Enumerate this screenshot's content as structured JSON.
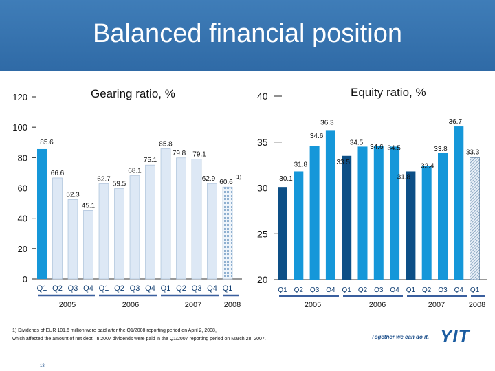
{
  "slide": {
    "title": "Balanced financial position",
    "footnote_line1": "1) Dividends of EUR 101.6 million were paid after the Q1/2008 reporting period on April 2, 2008,",
    "footnote_line2": "which affected the amount of net debt. In 2007 dividends were paid in the Q1/2007 reporting period on March 28, 2007.",
    "tagline": "Together we can do it.",
    "logo": "YIT",
    "page_number": "13"
  },
  "colors": {
    "header_blue": "#2f6aa6",
    "gearing_bar": "#dde8f5",
    "gearing_last": "#b9d0ea",
    "equity_dark": "#0d4f86",
    "equity_bright": "#1597d9",
    "hatch": "#6d8fb0",
    "year_line": "#3a5f9e"
  },
  "chart_data": [
    {
      "type": "bar",
      "title": "Gearing ratio, %",
      "categories": [
        "Q1",
        "Q2",
        "Q3",
        "Q4",
        "Q1",
        "Q2",
        "Q3",
        "Q4",
        "Q1",
        "Q2",
        "Q3",
        "Q4",
        "Q1"
      ],
      "years": [
        "2005",
        "2006",
        "2007",
        "2008"
      ],
      "values": [
        85.6,
        66.6,
        52.3,
        45.1,
        62.7,
        59.5,
        68.1,
        75.1,
        85.8,
        79.8,
        79.1,
        62.9,
        60.6
      ],
      "value_labels": [
        "85.6",
        "66.6",
        "52.3",
        "45.1",
        "62.7",
        "59.5",
        "68.1",
        "75.1",
        "85.8",
        "79.8",
        "79.1",
        "62.9",
        "60.6"
      ],
      "annotation": "1)",
      "yticks": [
        "0",
        "20",
        "40",
        "60",
        "80",
        "100",
        "120"
      ],
      "ylim": [
        0,
        120
      ]
    },
    {
      "type": "bar",
      "title": "Equity ratio, %",
      "categories": [
        "Q1",
        "Q2",
        "Q3",
        "Q4",
        "Q1",
        "Q2",
        "Q3",
        "Q4",
        "Q1",
        "Q2",
        "Q3",
        "Q4",
        "Q1"
      ],
      "years": [
        "2005",
        "2006",
        "2007",
        "2008"
      ],
      "values": [
        30.1,
        31.8,
        34.6,
        36.3,
        33.5,
        34.5,
        34.6,
        34.5,
        31.8,
        32.4,
        33.8,
        36.7,
        33.3
      ],
      "value_labels": [
        "30.1",
        "31.8",
        "34.6",
        "36.3",
        "33.5",
        "34.5",
        "34.6",
        "34.5",
        "31.8",
        "32.4",
        "33.8",
        "36.7",
        "33.3"
      ],
      "yticks": [
        "20",
        "25",
        "30",
        "35",
        "40"
      ],
      "ylim": [
        20,
        40
      ]
    }
  ]
}
